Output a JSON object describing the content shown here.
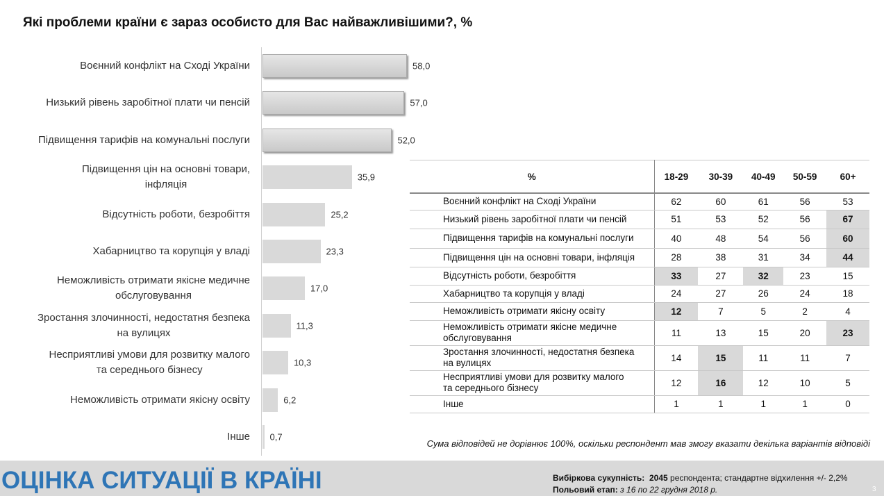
{
  "chart_data": {
    "type": "barh",
    "title": "Які проблеми країни є зараз особисто для Вас найважливішими?, %",
    "categories": [
      "Воєнний конфлікт на Сході України",
      "Низький рівень заробітної плати чи пенсій",
      "Підвищення тарифів на комунальні послуги",
      "Підвищення цін на основні товари,\nінфляція",
      "Відсутність роботи, безробіття",
      "Хабарництво та корупція  у владі",
      "Неможливість отримати  якісне медичне\nобслуговування",
      "Зростання злочинності, недостатня безпека\nна вулицях",
      "Несприятливі умови  для розвитку малого\nта середнього бізнесу",
      "Неможливість отримати  якісну освіту",
      "Інше"
    ],
    "values": [
      58.0,
      57.0,
      52.0,
      35.9,
      25.2,
      23.3,
      17.0,
      11.3,
      10.3,
      6.2,
      0.7
    ],
    "value_labels": [
      "58,0",
      "57,0",
      "52,0",
      "35,9",
      "25,2",
      "23,3",
      "17,0",
      "11,3",
      "10,3",
      "6,2",
      "0,7"
    ],
    "colors": [
      "#c9c9c9",
      "#c9c9c9",
      "#c9c9c9",
      "#d9d9d9",
      "#d9d9d9",
      "#d9d9d9",
      "#d9d9d9",
      "#d9d9d9",
      "#d9d9d9",
      "#d9d9d9",
      "#d9d9d9"
    ]
  },
  "table": {
    "header": [
      "%",
      "18-29",
      "30-39",
      "40-49",
      "50-59",
      "60+"
    ],
    "rows": [
      [
        "Воєнний конфлікт на Сході України",
        62,
        60,
        61,
        56,
        53
      ],
      [
        "Низький рівень заробітної плати чи пенсій",
        51,
        53,
        52,
        56,
        {
          "value": 67,
          "highlight": true
        }
      ],
      [
        "Підвищення тарифів на комунальні послуги",
        40,
        48,
        54,
        56,
        {
          "value": 60,
          "highlight": true
        }
      ],
      [
        "Підвищення цін на основні товари, інфляція",
        28,
        38,
        31,
        34,
        {
          "value": 44,
          "highlight": true
        }
      ],
      [
        "Відсутність роботи, безробіття",
        {
          "value": 33,
          "highlight": true
        },
        27,
        {
          "value": 32,
          "highlight": true
        },
        23,
        15
      ],
      [
        "Хабарництво та корупція у владі",
        24,
        27,
        26,
        24,
        18
      ],
      [
        "Неможливість отримати якісну освіту",
        {
          "value": 12,
          "highlight": true
        },
        7,
        5,
        2,
        4
      ],
      [
        "Неможливість отримати якісне медичне\nобслуговування",
        11,
        13,
        15,
        20,
        {
          "value": 23,
          "highlight": true
        }
      ],
      [
        "Зростання злочинності, недостатня безпека\nна вулицях",
        14,
        {
          "value": 15,
          "highlight": true
        },
        11,
        11,
        7
      ],
      [
        "Несприятливі умови для розвитку малого\nта середнього бізнесу",
        12,
        {
          "value": 16,
          "highlight": true
        },
        12,
        10,
        5
      ],
      [
        "Інше",
        1,
        1,
        1,
        1,
        0
      ]
    ]
  },
  "footnote": "Сума відповідей не дорівнює 100%, оскільки респондент мав змогу вказати декілька варіантів відповіді",
  "footer": {
    "section_title": "ОЦІНКА СИТУАЦІЇ В КРАЇНІ",
    "sample_label": "Вибіркова сукупність:",
    "sample_size": "2045",
    "sample_rest": "респондента; стандартне  відхилення +/- 2,2%",
    "field_label": "Польовий етап:",
    "field_dates": "з 16 по 22 грудня 2018 р.",
    "page": "3"
  }
}
